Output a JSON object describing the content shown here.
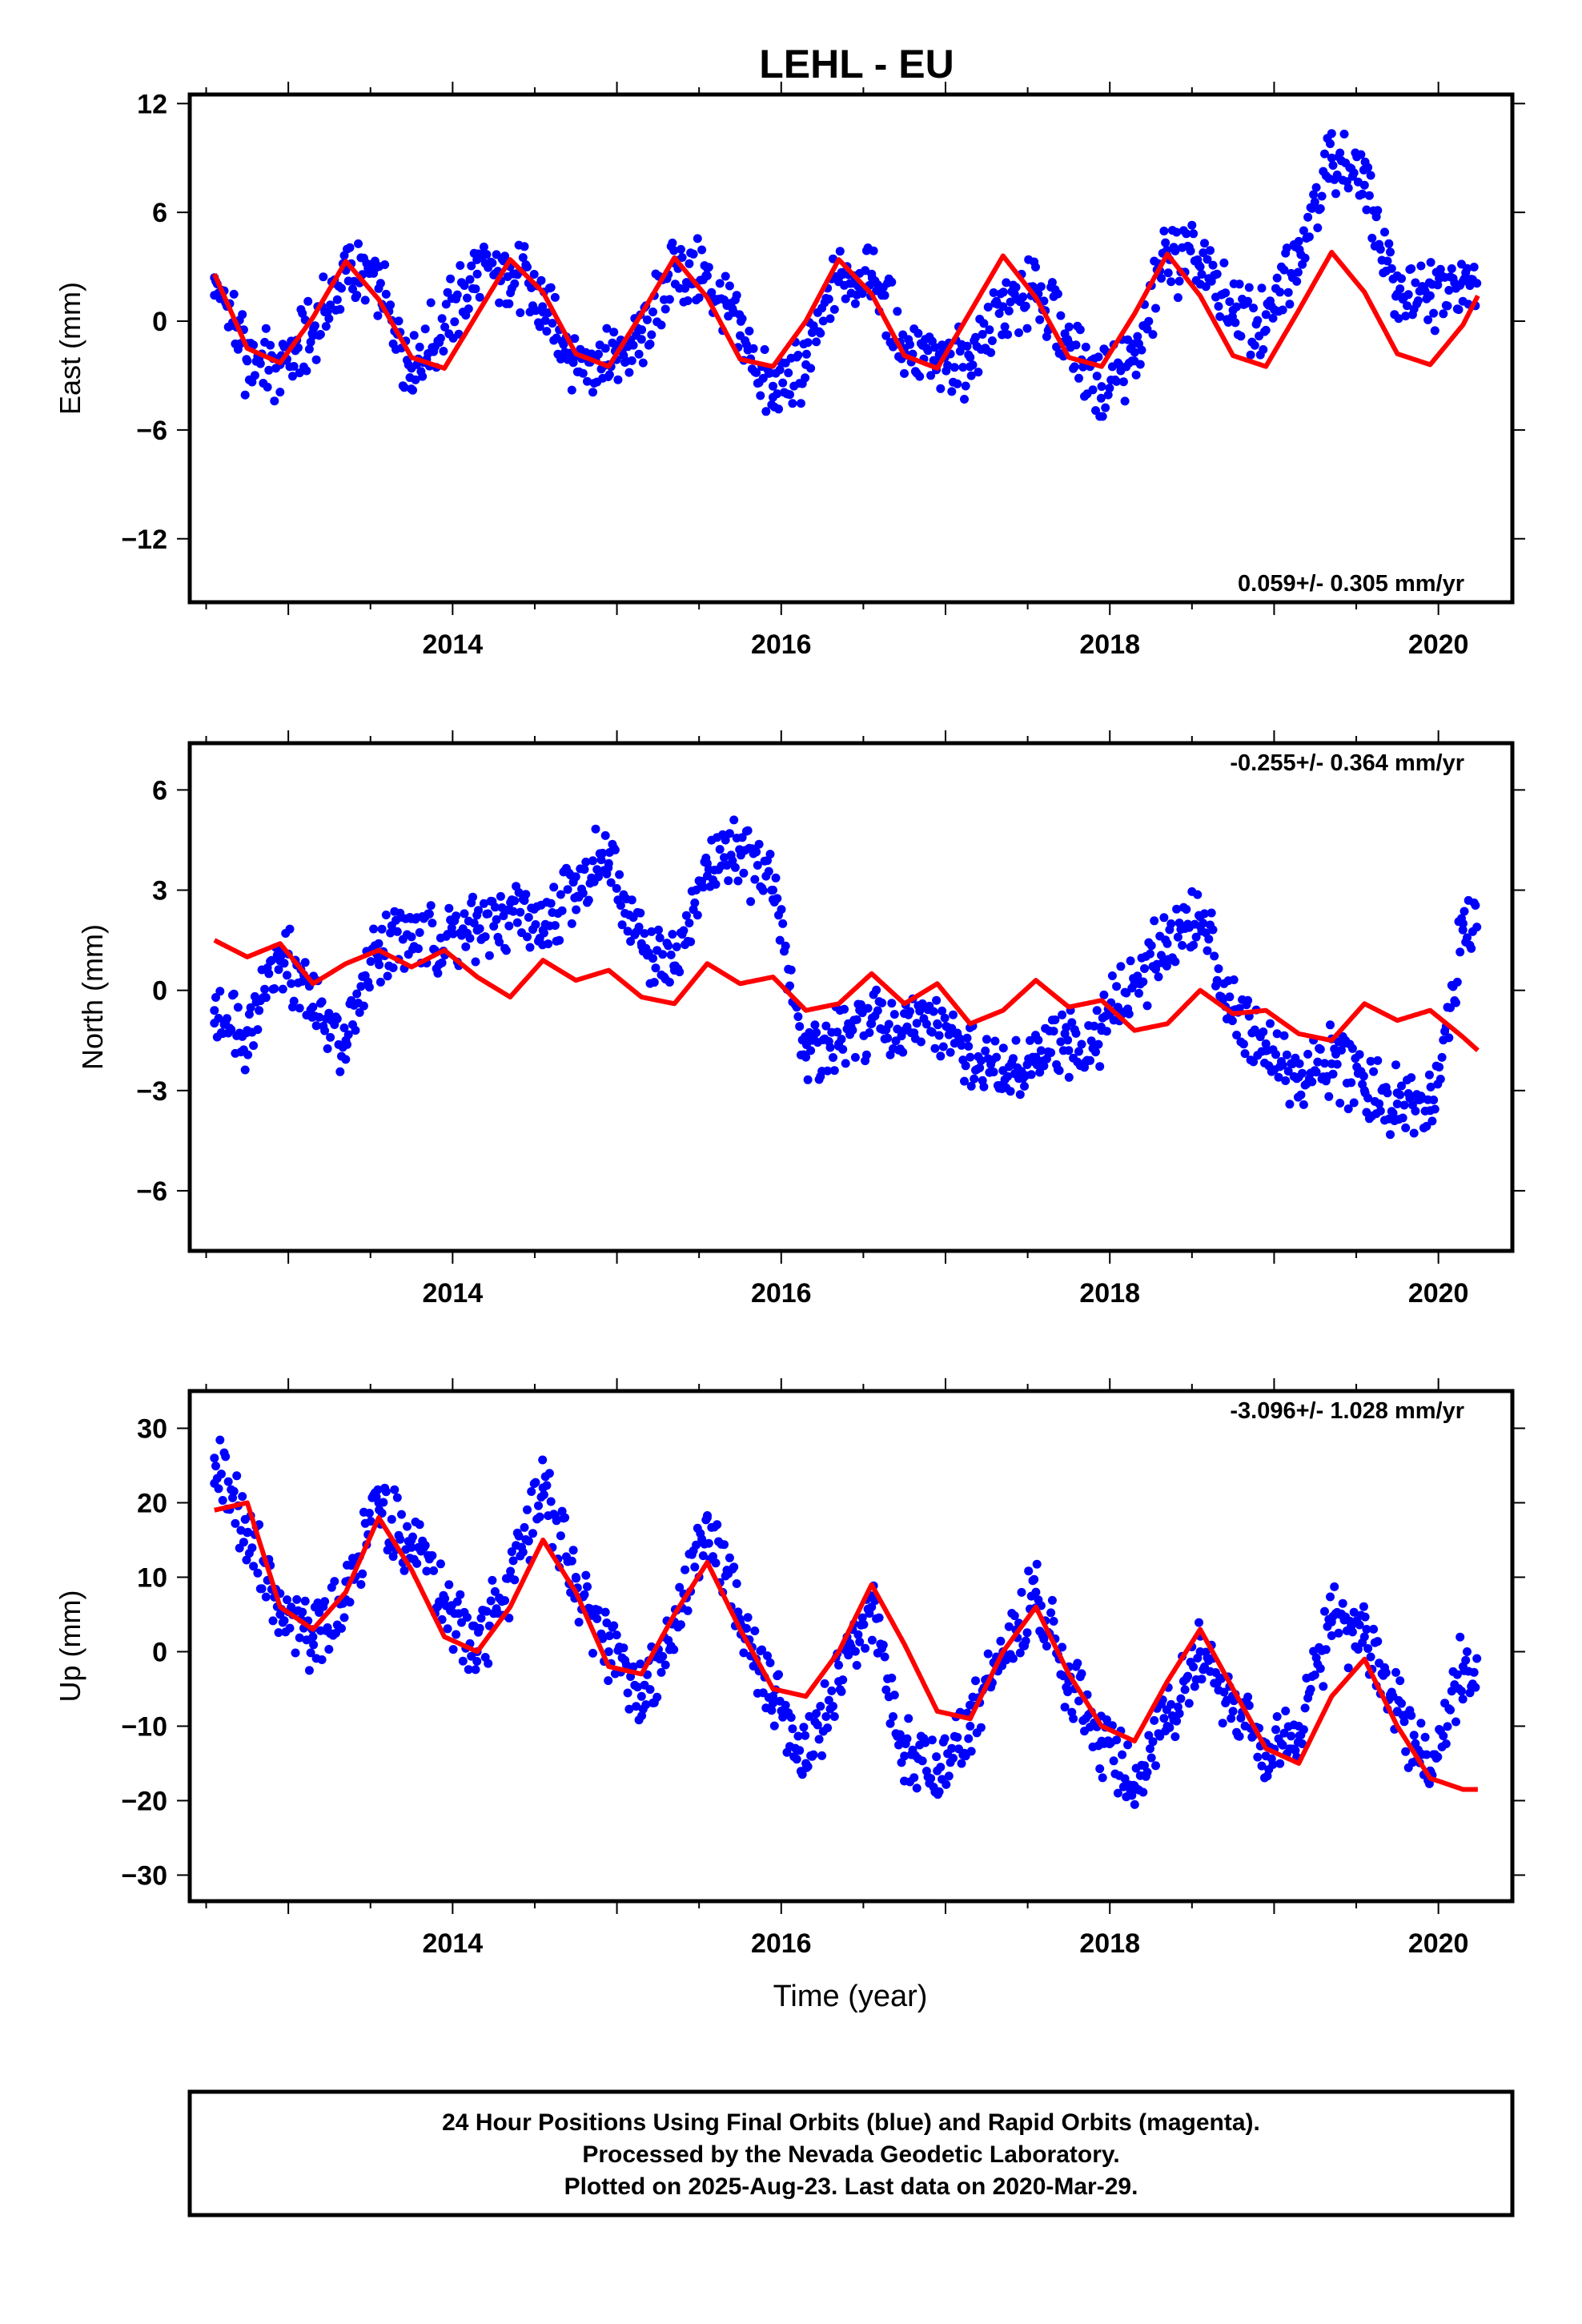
{
  "title": "LEHL - EU",
  "x_axis_label": "Time (year)",
  "footer": [
    "24 Hour Positions Using Final Orbits (blue) and Rapid Orbits (magenta).",
    "Processed by the Nevada Geodetic Laboratory.",
    "Plotted on 2025-Aug-23. Last data on 2020-Mar-29."
  ],
  "colors": {
    "observations": "#0000ff",
    "model": "#ff0000",
    "frame": "#000000"
  },
  "chart_data": [
    {
      "type": "scatter",
      "component": "east",
      "ylabel": "East (mm)",
      "xlim": [
        2012.4,
        2020.45
      ],
      "ylim": [
        -15.5,
        12.5
      ],
      "xticks": [
        2014,
        2016,
        2018,
        2020
      ],
      "yticks": [
        -12,
        -6,
        0,
        6,
        12
      ],
      "ytick_labels": [
        "−12",
        "−6",
        "0",
        "6",
        "12"
      ],
      "rate_label": "0.059+/- 0.305 mm/yr",
      "rate_position": "bottom-right",
      "grid": false,
      "series": [
        {
          "role": "observations",
          "color": "#0000ff",
          "x": [
            2012.55,
            2012.75,
            2012.95,
            2013.15,
            2013.35,
            2013.55,
            2013.75,
            2014.15,
            2014.35,
            2014.55,
            2014.75,
            2014.95,
            2015.15,
            2015.35,
            2015.55,
            2015.75,
            2015.95,
            2016.15,
            2016.35,
            2016.55,
            2016.75,
            2016.95,
            2017.15,
            2017.35,
            2017.55,
            2017.75,
            2017.95,
            2018.15,
            2018.35,
            2018.55,
            2018.75,
            2018.95,
            2019.15,
            2019.35,
            2019.55,
            2019.75,
            2019.95,
            2020.15
          ],
          "y": [
            2.4,
            -2.2,
            -2.4,
            -0.8,
            2.8,
            1.8,
            -2.6,
            2.6,
            3.0,
            0.5,
            -1.8,
            -2.4,
            -1.0,
            3.2,
            2.5,
            -0.8,
            -4.2,
            -2.4,
            2.4,
            2.6,
            -1.5,
            -2.4,
            -2.0,
            0.8,
            1.8,
            -1.2,
            -3.6,
            -2.2,
            3.6,
            3.0,
            0.6,
            -0.5,
            4.4,
            9.0,
            7.5,
            1.5,
            1.4,
            2.2
          ]
        },
        {
          "role": "model",
          "color": "#ff0000",
          "x": [
            2012.55,
            2012.75,
            2012.95,
            2013.15,
            2013.35,
            2013.55,
            2013.75,
            2013.95,
            2014.15,
            2014.35,
            2014.55,
            2014.75,
            2014.95,
            2015.15,
            2015.35,
            2015.55,
            2015.75,
            2015.95,
            2016.15,
            2016.35,
            2016.55,
            2016.75,
            2016.95,
            2017.15,
            2017.35,
            2017.55,
            2017.75,
            2017.95,
            2018.15,
            2018.35,
            2018.55,
            2018.75,
            2018.95,
            2019.15,
            2019.35,
            2019.55,
            2019.75,
            2019.95,
            2020.15,
            2020.24
          ],
          "y": [
            2.6,
            -1.5,
            -2.3,
            0.2,
            3.3,
            1.2,
            -2.0,
            -2.6,
            0.4,
            3.4,
            1.6,
            -1.8,
            -2.5,
            0.4,
            3.5,
            1.3,
            -2.1,
            -2.5,
            0.0,
            3.4,
            1.5,
            -1.9,
            -2.6,
            0.5,
            3.6,
            1.3,
            -2.0,
            -2.5,
            0.4,
            3.7,
            1.4,
            -1.9,
            -2.5,
            0.6,
            3.8,
            1.6,
            -1.8,
            -2.4,
            -0.2,
            1.4
          ]
        }
      ]
    },
    {
      "type": "scatter",
      "component": "north",
      "ylabel": "North (mm)",
      "xlim": [
        2012.4,
        2020.45
      ],
      "ylim": [
        -7.8,
        7.4
      ],
      "xticks": [
        2014,
        2016,
        2018,
        2020
      ],
      "yticks": [
        -6,
        -3,
        0,
        3,
        6
      ],
      "ytick_labels": [
        "−6",
        "−3",
        "0",
        "3",
        "6"
      ],
      "rate_label": "-0.255+/- 0.364 mm/yr",
      "rate_position": "top-right",
      "grid": false,
      "series": [
        {
          "role": "observations",
          "color": "#0000ff",
          "x": [
            2012.55,
            2012.75,
            2012.95,
            2013.15,
            2013.35,
            2013.55,
            2013.75,
            2014.15,
            2014.35,
            2014.55,
            2014.75,
            2014.95,
            2015.15,
            2015.35,
            2015.55,
            2015.75,
            2015.95,
            2016.15,
            2016.35,
            2016.55,
            2016.75,
            2016.95,
            2017.15,
            2017.35,
            2017.55,
            2017.75,
            2017.95,
            2018.15,
            2018.35,
            2018.55,
            2018.75,
            2018.95,
            2019.15,
            2019.35,
            2019.55,
            2019.75,
            2019.95,
            2020.15
          ],
          "y": [
            -0.6,
            -1.2,
            1.2,
            -0.5,
            -1.5,
            1.4,
            1.6,
            1.8,
            2.4,
            1.8,
            3.4,
            3.8,
            1.4,
            0.6,
            3.8,
            4.2,
            3.0,
            -2.0,
            -1.6,
            -1.0,
            -1.2,
            -1.0,
            -2.0,
            -2.4,
            -2.0,
            -1.8,
            -1.2,
            0.2,
            1.4,
            2.2,
            -0.6,
            -1.6,
            -2.6,
            -2.2,
            -3.0,
            -3.4,
            -3.6,
            2.0
          ]
        },
        {
          "role": "model",
          "color": "#ff0000",
          "x": [
            2012.55,
            2012.75,
            2012.95,
            2013.15,
            2013.35,
            2013.55,
            2013.75,
            2013.95,
            2014.15,
            2014.35,
            2014.55,
            2014.75,
            2014.95,
            2015.15,
            2015.35,
            2015.55,
            2015.75,
            2015.95,
            2016.15,
            2016.35,
            2016.55,
            2016.75,
            2016.95,
            2017.15,
            2017.35,
            2017.55,
            2017.75,
            2017.95,
            2018.15,
            2018.35,
            2018.55,
            2018.75,
            2018.95,
            2019.15,
            2019.35,
            2019.55,
            2019.75,
            2019.95,
            2020.15,
            2020.24
          ],
          "y": [
            1.5,
            1.0,
            1.4,
            0.2,
            0.8,
            1.2,
            0.7,
            1.2,
            0.4,
            -0.2,
            0.9,
            0.3,
            0.6,
            -0.2,
            -0.4,
            0.8,
            0.2,
            0.4,
            -0.6,
            -0.4,
            0.5,
            -0.4,
            0.2,
            -1.0,
            -0.6,
            0.3,
            -0.5,
            -0.3,
            -1.2,
            -1.0,
            0.0,
            -0.7,
            -0.6,
            -1.3,
            -1.5,
            -0.4,
            -0.9,
            -0.6,
            -1.4,
            -1.8
          ]
        }
      ]
    },
    {
      "type": "scatter",
      "component": "up",
      "ylabel": "Up (mm)",
      "xlim": [
        2012.4,
        2020.45
      ],
      "ylim": [
        -33.5,
        35
      ],
      "xticks": [
        2014,
        2016,
        2018,
        2020
      ],
      "yticks": [
        -30,
        -20,
        -10,
        0,
        10,
        20,
        30
      ],
      "ytick_labels": [
        "−30",
        "−20",
        "−10",
        "0",
        "10",
        "20",
        "30"
      ],
      "rate_label": "-3.096+/- 1.028 mm/yr",
      "rate_position": "top-right",
      "grid": false,
      "series": [
        {
          "role": "observations",
          "color": "#0000ff",
          "x": [
            2012.55,
            2012.75,
            2012.95,
            2013.15,
            2013.35,
            2013.55,
            2013.75,
            2014.15,
            2014.35,
            2014.55,
            2014.75,
            2014.95,
            2015.15,
            2015.35,
            2015.55,
            2015.75,
            2015.95,
            2016.15,
            2016.35,
            2016.55,
            2016.75,
            2016.95,
            2017.15,
            2017.35,
            2017.55,
            2017.75,
            2017.95,
            2018.15,
            2018.35,
            2018.55,
            2018.75,
            2018.95,
            2019.15,
            2019.35,
            2019.55,
            2019.75,
            2019.95,
            2020.15
          ],
          "y": [
            26,
            16,
            5,
            2,
            7,
            20,
            14,
            0,
            10,
            22,
            10,
            0,
            -6,
            4,
            18,
            4,
            -6,
            -15,
            -4,
            6,
            -14,
            -16,
            -10,
            0,
            8,
            -4,
            -12,
            -18,
            -10,
            0,
            -8,
            -14,
            -10,
            4,
            2,
            -8,
            -16,
            -2
          ]
        },
        {
          "role": "model",
          "color": "#ff0000",
          "x": [
            2012.55,
            2012.75,
            2012.95,
            2013.15,
            2013.35,
            2013.55,
            2013.75,
            2013.95,
            2014.15,
            2014.35,
            2014.55,
            2014.75,
            2014.95,
            2015.15,
            2015.35,
            2015.55,
            2015.75,
            2015.95,
            2016.15,
            2016.35,
            2016.55,
            2016.75,
            2016.95,
            2017.15,
            2017.35,
            2017.55,
            2017.75,
            2017.95,
            2018.15,
            2018.35,
            2018.55,
            2018.75,
            2018.95,
            2019.15,
            2019.35,
            2019.55,
            2019.75,
            2019.95,
            2020.15,
            2020.24
          ],
          "y": [
            19,
            20,
            6,
            3,
            8,
            18,
            11,
            2,
            0,
            6,
            15,
            8,
            -2,
            -3,
            5,
            12,
            3,
            -5,
            -6,
            0,
            9,
            1,
            -8,
            -9,
            0,
            6,
            -3,
            -10,
            -12,
            -4,
            3,
            -5,
            -13,
            -15,
            -6,
            -1,
            -10,
            -17,
            -18.5,
            -18.5
          ]
        }
      ]
    }
  ]
}
